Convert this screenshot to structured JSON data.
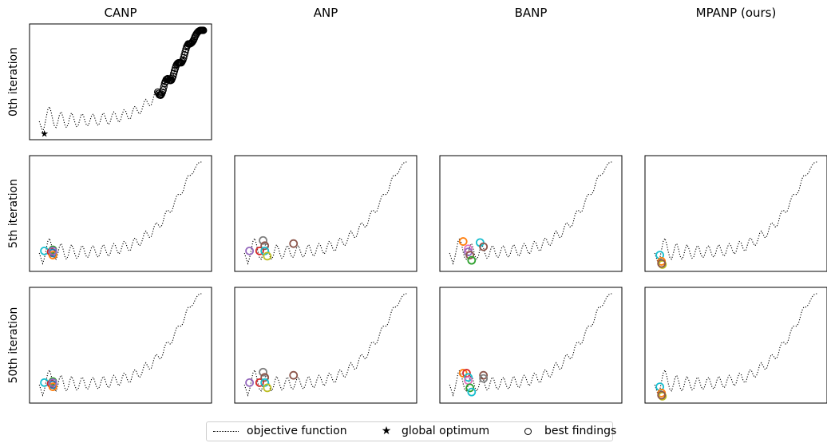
{
  "chart_data": {
    "type": "scatter",
    "columns": [
      "CANP",
      "ANP",
      "BANP",
      "MPANP (ours)"
    ],
    "rows": [
      "0th iteration",
      "5th iteration",
      "50th iteration"
    ],
    "xlim": [
      0,
      1
    ],
    "ylim": [
      0,
      1
    ],
    "objective_function": {
      "name": "objective function",
      "style": "dotted",
      "color": "#000000",
      "x": [
        0.02,
        0.04,
        0.05,
        0.06,
        0.07,
        0.08,
        0.09,
        0.1,
        0.11,
        0.12,
        0.13,
        0.14,
        0.15,
        0.16,
        0.17,
        0.18,
        0.19,
        0.2,
        0.21,
        0.22,
        0.23,
        0.24,
        0.25,
        0.26,
        0.27,
        0.28,
        0.29,
        0.3,
        0.31,
        0.32,
        0.33,
        0.34,
        0.35,
        0.36,
        0.37,
        0.38,
        0.39,
        0.4,
        0.41,
        0.42,
        0.43,
        0.44,
        0.45,
        0.46,
        0.47,
        0.48,
        0.49,
        0.5,
        0.51,
        0.52,
        0.53,
        0.54,
        0.55,
        0.56,
        0.57,
        0.58,
        0.59,
        0.6,
        0.61,
        0.62,
        0.63,
        0.64,
        0.65,
        0.66,
        0.67,
        0.68,
        0.69,
        0.7,
        0.71,
        0.72,
        0.73,
        0.74,
        0.75,
        0.76,
        0.77,
        0.78,
        0.79,
        0.8,
        0.81,
        0.82,
        0.83,
        0.84,
        0.85,
        0.86,
        0.87,
        0.88,
        0.89,
        0.9,
        0.91,
        0.92,
        0.93,
        0.94,
        0.95,
        0.96,
        0.97,
        0.98
      ],
      "y": [
        0.13,
        0.03,
        0.08,
        0.16,
        0.24,
        0.27,
        0.22,
        0.14,
        0.08,
        0.07,
        0.13,
        0.2,
        0.22,
        0.17,
        0.1,
        0.07,
        0.1,
        0.17,
        0.21,
        0.18,
        0.12,
        0.08,
        0.09,
        0.15,
        0.2,
        0.19,
        0.13,
        0.09,
        0.09,
        0.14,
        0.19,
        0.2,
        0.15,
        0.1,
        0.09,
        0.13,
        0.19,
        0.21,
        0.17,
        0.12,
        0.1,
        0.13,
        0.19,
        0.22,
        0.2,
        0.15,
        0.12,
        0.14,
        0.2,
        0.24,
        0.23,
        0.18,
        0.15,
        0.16,
        0.22,
        0.27,
        0.27,
        0.23,
        0.2,
        0.21,
        0.26,
        0.32,
        0.34,
        0.31,
        0.28,
        0.28,
        0.33,
        0.39,
        0.42,
        0.41,
        0.38,
        0.38,
        0.42,
        0.49,
        0.53,
        0.54,
        0.52,
        0.52,
        0.56,
        0.62,
        0.67,
        0.69,
        0.69,
        0.69,
        0.72,
        0.78,
        0.84,
        0.87,
        0.87,
        0.88,
        0.9,
        0.94,
        0.97,
        0.99,
        1.0,
        1.0
      ]
    },
    "global_optimum": {
      "name": "global optimum",
      "x": 0.05,
      "y": 0.02
    },
    "best_findings_label": "best findings",
    "panels": [
      {
        "row": 0,
        "col": 0,
        "points": "sweep",
        "sweep_range": [
          0.72,
          0.99
        ]
      },
      {
        "row": 1,
        "col": 0,
        "points": [
          {
            "x": 0.05,
            "y": 0.15,
            "color": "#17becf"
          },
          {
            "x": 0.09,
            "y": 0.14,
            "color": "#d62728"
          },
          {
            "x": 0.1,
            "y": 0.13,
            "color": "#1f77b4"
          },
          {
            "x": 0.1,
            "y": 0.16,
            "color": "#2ca02c"
          },
          {
            "x": 0.1,
            "y": 0.11,
            "color": "#ff7f0e"
          },
          {
            "x": 0.1,
            "y": 0.15,
            "color": "#9467bd"
          }
        ]
      },
      {
        "row": 1,
        "col": 1,
        "points": [
          {
            "x": 0.05,
            "y": 0.15,
            "color": "#9467bd"
          },
          {
            "x": 0.11,
            "y": 0.15,
            "color": "#d62728"
          },
          {
            "x": 0.13,
            "y": 0.25,
            "color": "#7f7f7f"
          },
          {
            "x": 0.14,
            "y": 0.2,
            "color": "#8c564b"
          },
          {
            "x": 0.14,
            "y": 0.15,
            "color": "#17becf"
          },
          {
            "x": 0.155,
            "y": 0.1,
            "color": "#bcbd22"
          },
          {
            "x": 0.31,
            "y": 0.22,
            "color": "#8c564b"
          }
        ]
      },
      {
        "row": 1,
        "col": 2,
        "points": [
          {
            "x": 0.1,
            "y": 0.24,
            "color": "#ff7f0e"
          },
          {
            "x": 0.13,
            "y": 0.17,
            "color": "#e377c2"
          },
          {
            "x": 0.13,
            "y": 0.14,
            "color": "#9467bd"
          },
          {
            "x": 0.14,
            "y": 0.11,
            "color": "#8c564b"
          },
          {
            "x": 0.15,
            "y": 0.06,
            "color": "#2ca02c"
          },
          {
            "x": 0.2,
            "y": 0.23,
            "color": "#17becf"
          },
          {
            "x": 0.22,
            "y": 0.19,
            "color": "#8c564b"
          }
        ]
      },
      {
        "row": 1,
        "col": 3,
        "points": [
          {
            "x": 0.05,
            "y": 0.11,
            "color": "#17becf"
          },
          {
            "x": 0.06,
            "y": 0.05,
            "color": "#ff7f0e"
          },
          {
            "x": 0.065,
            "y": 0.02,
            "color": "#bcbd22"
          },
          {
            "x": 0.06,
            "y": 0.03,
            "color": "#8c564b"
          }
        ]
      },
      {
        "row": 2,
        "col": 0,
        "points": [
          {
            "x": 0.05,
            "y": 0.15,
            "color": "#17becf"
          },
          {
            "x": 0.09,
            "y": 0.14,
            "color": "#d62728"
          },
          {
            "x": 0.1,
            "y": 0.13,
            "color": "#1f77b4"
          },
          {
            "x": 0.1,
            "y": 0.16,
            "color": "#2ca02c"
          },
          {
            "x": 0.1,
            "y": 0.11,
            "color": "#ff7f0e"
          },
          {
            "x": 0.1,
            "y": 0.15,
            "color": "#9467bd"
          }
        ]
      },
      {
        "row": 2,
        "col": 1,
        "points": [
          {
            "x": 0.05,
            "y": 0.15,
            "color": "#9467bd"
          },
          {
            "x": 0.11,
            "y": 0.15,
            "color": "#d62728"
          },
          {
            "x": 0.13,
            "y": 0.25,
            "color": "#7f7f7f"
          },
          {
            "x": 0.14,
            "y": 0.2,
            "color": "#8c564b"
          },
          {
            "x": 0.14,
            "y": 0.15,
            "color": "#17becf"
          },
          {
            "x": 0.155,
            "y": 0.1,
            "color": "#bcbd22"
          },
          {
            "x": 0.31,
            "y": 0.22,
            "color": "#8c564b"
          }
        ]
      },
      {
        "row": 2,
        "col": 2,
        "points": [
          {
            "x": 0.1,
            "y": 0.24,
            "color": "#ff7f0e"
          },
          {
            "x": 0.12,
            "y": 0.24,
            "color": "#d62728"
          },
          {
            "x": 0.13,
            "y": 0.2,
            "color": "#17becf"
          },
          {
            "x": 0.13,
            "y": 0.17,
            "color": "#e377c2"
          },
          {
            "x": 0.14,
            "y": 0.1,
            "color": "#2ca02c"
          },
          {
            "x": 0.15,
            "y": 0.06,
            "color": "#17becf"
          },
          {
            "x": 0.22,
            "y": 0.22,
            "color": "#8c564b"
          },
          {
            "x": 0.22,
            "y": 0.19,
            "color": "#7f7f7f"
          }
        ]
      },
      {
        "row": 2,
        "col": 3,
        "points": [
          {
            "x": 0.05,
            "y": 0.11,
            "color": "#17becf"
          },
          {
            "x": 0.06,
            "y": 0.05,
            "color": "#ff7f0e"
          },
          {
            "x": 0.065,
            "y": 0.02,
            "color": "#bcbd22"
          },
          {
            "x": 0.06,
            "y": 0.03,
            "color": "#8c564b"
          }
        ]
      }
    ],
    "legend": {
      "items": [
        "objective function",
        "global optimum",
        "best findings"
      ],
      "placement": "bottom-center"
    }
  }
}
